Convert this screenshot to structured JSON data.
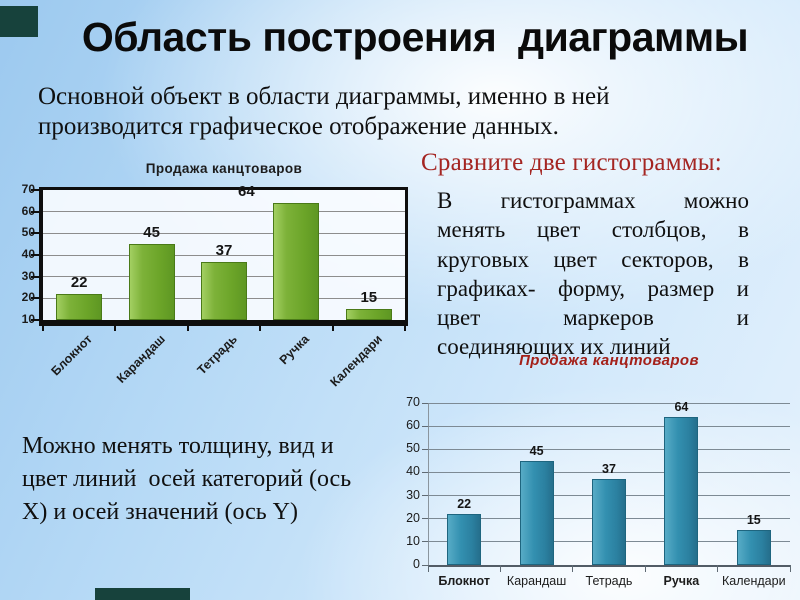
{
  "slide": {
    "title": "Область построения  диаграммы",
    "subtitle_lines": [
      "Основной объект в области диаграммы, именно в ней",
      "производится графическое отображение данных."
    ],
    "compare_heading": "Сравните две гистограммы:",
    "body_lines": [
      "В гистограммах можно",
      "менять цвет столбцов, в",
      "круговых цвет секторов, в",
      "графиках- форму, размер и",
      "цвет маркеров и",
      "соединяющих их линий"
    ],
    "bottom_lines": [
      "Можно менять толщину, вид и",
      "цвет линий  осей категорий (ось",
      "X) и осей значений (ось Y)"
    ],
    "accent_text_color": "#a42522",
    "deco_color": "#17423c"
  },
  "chart_data": [
    {
      "id": "green",
      "type": "bar",
      "title": "Продажа канцтоваров",
      "title_color": "#1c1c1c",
      "categories": [
        "Блокнот",
        "Карандаш",
        "Тетрадь",
        "Ручка",
        "Календари"
      ],
      "values": [
        22,
        45,
        37,
        64,
        15
      ],
      "ylim": [
        10,
        70
      ],
      "ytick_step": 10,
      "grid": true,
      "legend": "none",
      "xlabel": "",
      "ylabel": "",
      "bar_color": "#6fa62b",
      "plot_style": "white-plot-thick-black-border",
      "x_label_rotation": -45,
      "value_label_dx": [
        0,
        0,
        0,
        -50,
        0
      ],
      "bold_categories": [
        false,
        false,
        false,
        false,
        false
      ]
    },
    {
      "id": "teal",
      "type": "bar",
      "title": "Продажа канцтоваров",
      "title_color": "#a42019",
      "categories": [
        "Блокнот",
        "Карандаш",
        "Тетрадь",
        "Ручка",
        "Календари"
      ],
      "values": [
        22,
        45,
        37,
        64,
        15
      ],
      "ylim": [
        0,
        70
      ],
      "ytick_step": 10,
      "grid": true,
      "legend": "none",
      "xlabel": "",
      "ylabel": "",
      "bar_color": "#3a92b2",
      "plot_style": "transparent-plot-open-axes",
      "x_label_rotation": 0,
      "value_label_dx": [
        0,
        0,
        0,
        0,
        0
      ],
      "bold_categories": [
        true,
        false,
        false,
        true,
        false
      ]
    }
  ]
}
